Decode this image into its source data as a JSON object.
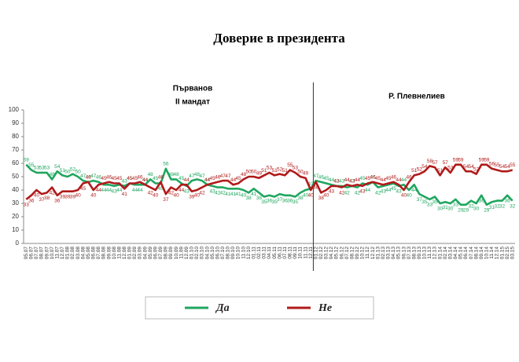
{
  "chart_data": {
    "type": "line",
    "title": "Доверие в президента",
    "annotations": [
      "Първанов",
      "II мандат",
      "Р. Плевнелиев"
    ],
    "categories": [
      "05.07",
      "06.07",
      "07.07",
      "08.07",
      "09.07",
      "10.07",
      "11.07",
      "12.07",
      "01.08",
      "02.08",
      "03.08",
      "04.08",
      "05.08",
      "06.08",
      "07.08",
      "08.08",
      "09.08",
      "10.08",
      "11.08",
      "12.08",
      "01.09",
      "02.09",
      "03.09",
      "04.09",
      "05.09",
      "06.09",
      "07.09",
      "08.09",
      "09.09",
      "10.09",
      "11.09",
      "12.09",
      "01.10",
      "02.10",
      "03.10",
      "04.10",
      "05.10",
      "06.10",
      "07.10",
      "08.10",
      "09.10",
      "10.10",
      "11.10",
      "12.10",
      "01.11",
      "02.11",
      "03.11",
      "04.11",
      "05.11",
      "06.11",
      "07.11",
      "08.11",
      "09.11",
      "10.11",
      "11.11",
      "12.11",
      "01.12",
      "02.12",
      "03.12",
      "04.12",
      "05.12",
      "06.12",
      "07.12",
      "08.12",
      "09.12",
      "10.12",
      "11.12",
      "12.12",
      "01.13",
      "02.13",
      "03.13",
      "04.13",
      "05.13",
      "06.13",
      "07.13",
      "08.13",
      "09.13",
      "10.13",
      "11.13",
      "12.13",
      "01.14",
      "02.14",
      "03.14",
      "04.14",
      "05.14",
      "06.14",
      "07.14",
      "08.14",
      "09.14",
      "10.14",
      "11.14",
      "12.14",
      "01.15",
      "02.15",
      "03.15"
    ],
    "series": [
      {
        "name": "Да",
        "color": "#1fa65f",
        "values": [
          59,
          55,
          53,
          53,
          53,
          48,
          54,
          51,
          50,
          52,
          50,
          47,
          46,
          47,
          46,
          44,
          44,
          43,
          44,
          43,
          45,
          44,
          44,
          44,
          48,
          45,
          45,
          56,
          48,
          48,
          45,
          43,
          47,
          48,
          47,
          44,
          43,
          42,
          42,
          41,
          41,
          41,
          40,
          38,
          41,
          38,
          35,
          36,
          35,
          37,
          36,
          36,
          35,
          38,
          40,
          41,
          47,
          46,
          45,
          44,
          43,
          43,
          42,
          43,
          42,
          45,
          44,
          46,
          42,
          43,
          44,
          45,
          43,
          44,
          40,
          44,
          37,
          35,
          33,
          35,
          30,
          31,
          30,
          33,
          29,
          29,
          32,
          30,
          36,
          29,
          31,
          32,
          32,
          36,
          32
        ]
      },
      {
        "name": "Не",
        "color": "#b01a1a",
        "values": [
          33,
          36,
          40,
          37,
          38,
          42,
          36,
          39,
          39,
          39,
          40,
          45,
          46,
          40,
          44,
          45,
          46,
          45,
          45,
          41,
          45,
          45,
          46,
          44,
          42,
          40,
          46,
          37,
          42,
          40,
          44,
          44,
          39,
          40,
          42,
          44,
          45,
          46,
          47,
          47,
          44,
          45,
          48,
          50,
          50,
          49,
          51,
          53,
          51,
          52,
          51,
          55,
          53,
          50,
          49,
          40,
          46,
          38,
          40,
          43,
          43,
          42,
          44,
          43,
          44,
          43,
          45,
          46,
          45,
          44,
          45,
          46,
          44,
          40,
          46,
          51,
          52,
          54,
          58,
          57,
          51,
          57,
          53,
          59,
          59,
          54,
          54,
          52,
          59,
          59,
          56,
          55,
          54,
          54,
          55
        ]
      }
    ],
    "ylim": [
      0,
      100
    ],
    "yticks": [
      0,
      10,
      20,
      30,
      40,
      50,
      60,
      70,
      80,
      90,
      100
    ],
    "grid": false,
    "legend": "bottom"
  }
}
